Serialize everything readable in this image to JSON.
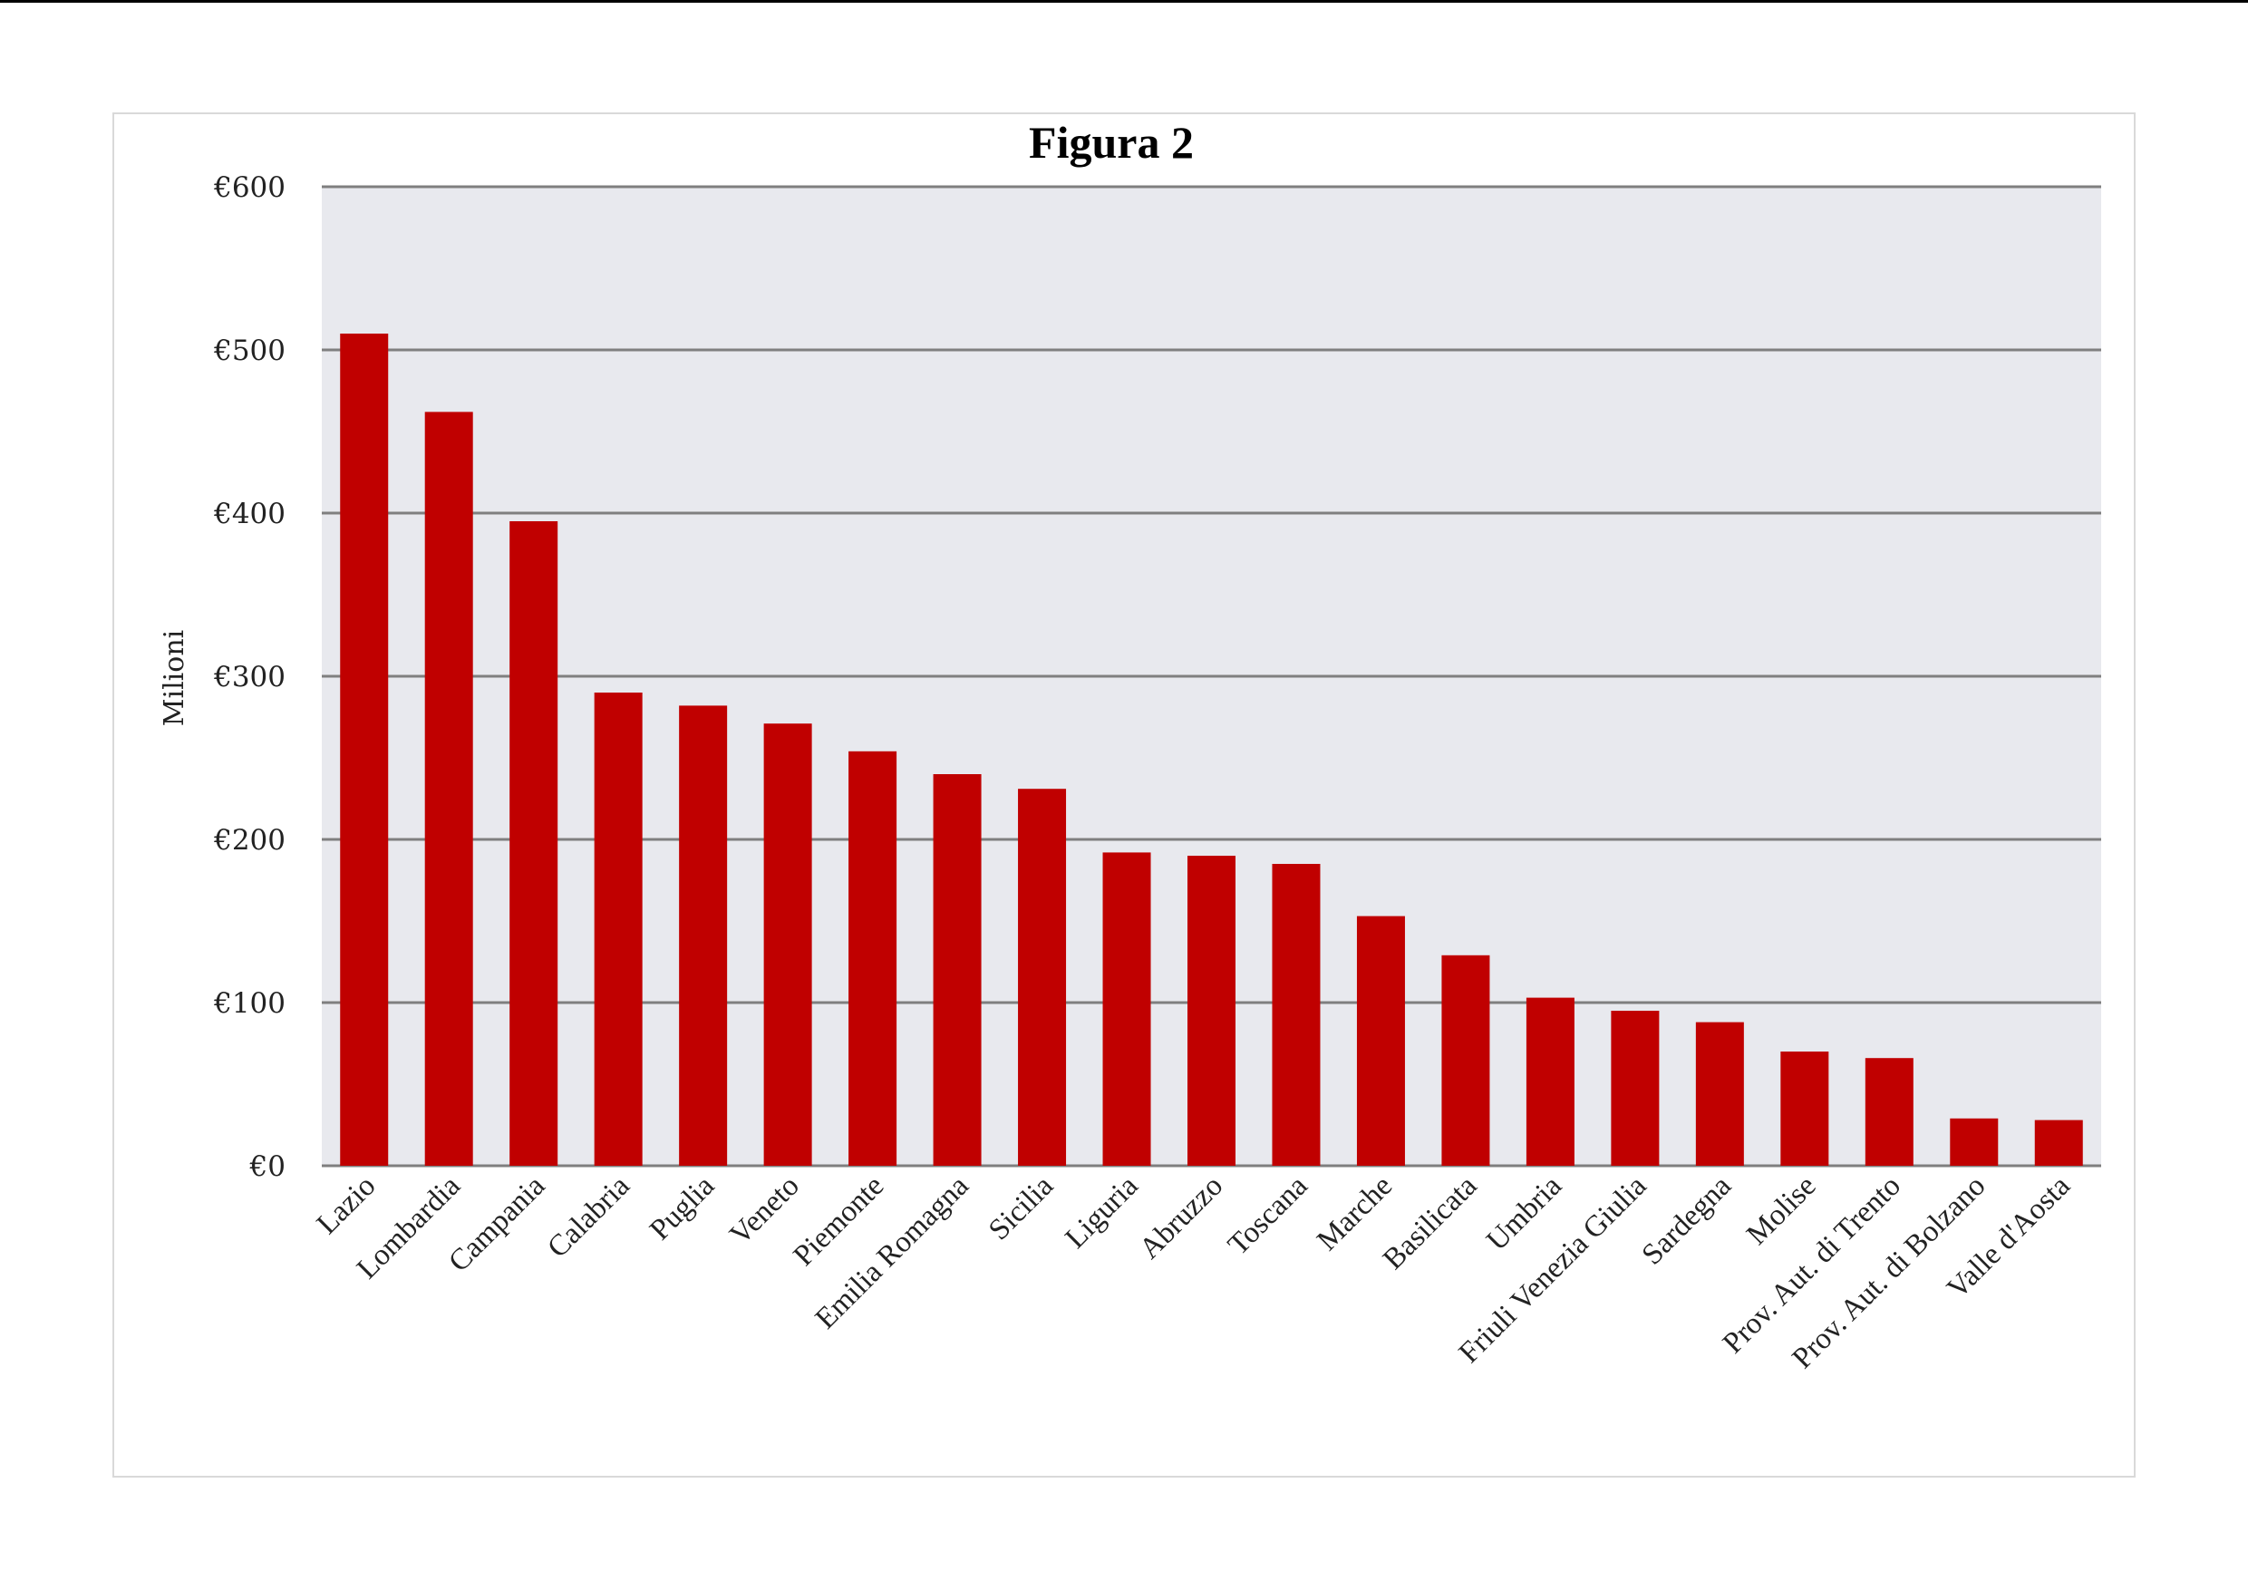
{
  "chart_data": {
    "type": "bar",
    "title": "Figura 2",
    "ylabel": "Milioni",
    "xlabel": "",
    "ylim": [
      0,
      600
    ],
    "yticks": [
      {
        "value": 0,
        "label": "€0"
      },
      {
        "value": 100,
        "label": "€100"
      },
      {
        "value": 200,
        "label": "€200"
      },
      {
        "value": 300,
        "label": "€300"
      },
      {
        "value": 400,
        "label": "€400"
      },
      {
        "value": 500,
        "label": "€500"
      },
      {
        "value": 600,
        "label": "€600"
      }
    ],
    "grid": true,
    "legend": "none",
    "categories": [
      "Lazio",
      "Lombardia",
      "Campania",
      "Calabria",
      "Puglia",
      "Veneto",
      "Piemonte",
      "Emilia Romagna",
      "Sicilia",
      "Liguria",
      "Abruzzo",
      "Toscana",
      "Marche",
      "Basilicata",
      "Umbria",
      "Friuli Venezia Giulia",
      "Sardegna",
      "Molise",
      "Prov. Aut. di Trento",
      "Prov. Aut. di Bolzano",
      "Valle d'Aosta"
    ],
    "values": [
      510,
      462,
      395,
      290,
      282,
      271,
      254,
      240,
      231,
      192,
      190,
      185,
      153,
      129,
      103,
      95,
      88,
      70,
      66,
      29,
      28
    ],
    "colors": {
      "bar": "#c00000",
      "plot_background": "#e8e9ee",
      "gridline": "#7f7f7f"
    }
  }
}
